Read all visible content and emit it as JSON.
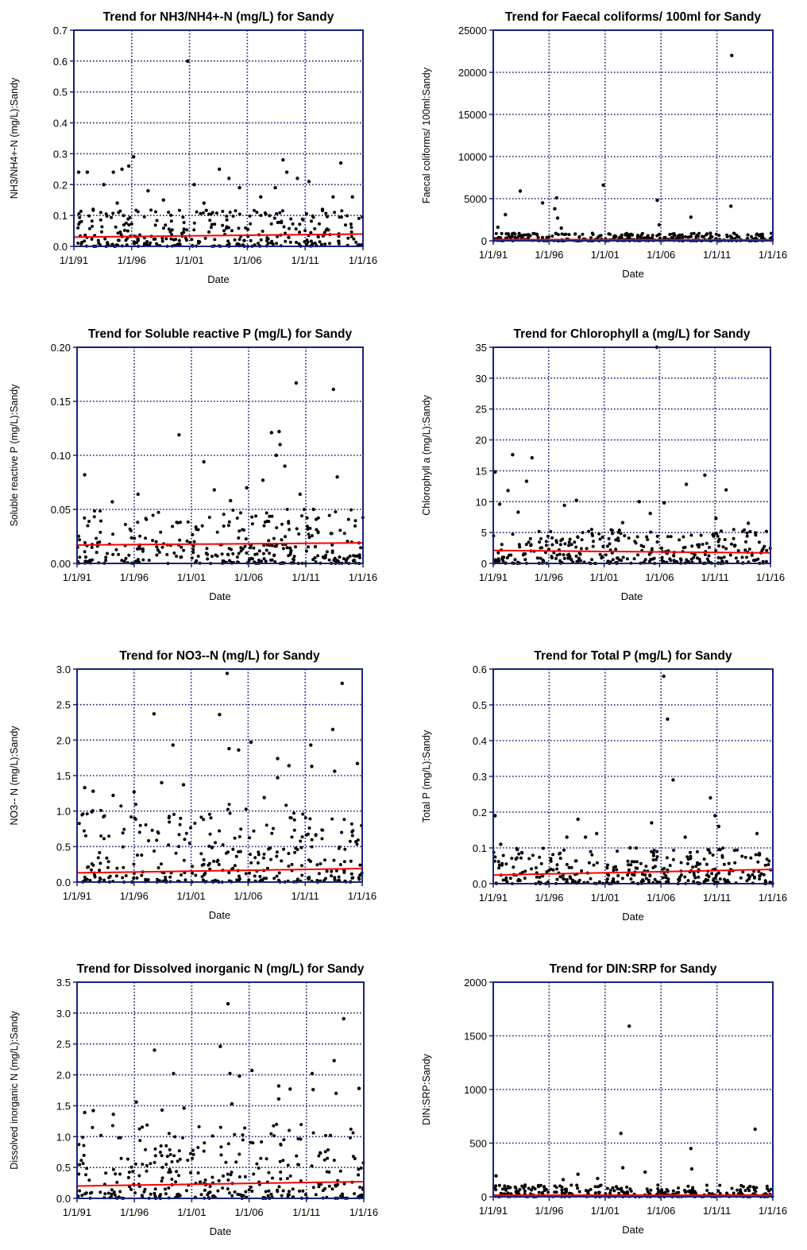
{
  "chart_data": [
    {
      "id": "nh3",
      "type": "scatter",
      "title": "Trend for NH3/NH4+-N (mg/L) for Sandy",
      "xlabel": "Date",
      "ylabel": "NH3/NH4+-N (mg/L):Sandy",
      "x_ticks": [
        "1/1/91",
        "1/1/96",
        "1/1/01",
        "1/1/06",
        "1/1/11",
        "1/1/16"
      ],
      "xlim": [
        "1991-01-01",
        "2016-01-01"
      ],
      "y_ticks": [
        "0.0",
        "0.1",
        "0.2",
        "0.3",
        "0.4",
        "0.5",
        "0.6",
        "0.7"
      ],
      "ylim": [
        0,
        0.7
      ],
      "grid": true,
      "series": [
        {
          "values": [
            [
              "1991-06-01",
              0.24
            ],
            [
              "1992-03-01",
              0.24
            ],
            [
              "1993-08-01",
              0.2
            ],
            [
              "1994-06-01",
              0.24
            ],
            [
              "1995-03-01",
              0.25
            ],
            [
              "1995-10-01",
              0.26
            ],
            [
              "1996-03-01",
              0.29
            ],
            [
              "1997-06-01",
              0.18
            ],
            [
              "2000-11-01",
              0.6
            ],
            [
              "2001-06-01",
              0.2
            ],
            [
              "2003-08-01",
              0.25
            ],
            [
              "2004-06-01",
              0.22
            ],
            [
              "2005-05-01",
              0.19
            ],
            [
              "2008-06-01",
              0.19
            ],
            [
              "2009-02-01",
              0.28
            ],
            [
              "2009-06-01",
              0.24
            ],
            [
              "2010-05-01",
              0.22
            ],
            [
              "2011-05-01",
              0.21
            ],
            [
              "2014-02-01",
              0.27
            ],
            [
              "2013-06-01",
              0.16
            ],
            [
              "1992-09-01",
              0.12
            ],
            [
              "1994-10-01",
              0.14
            ],
            [
              "1998-10-01",
              0.15
            ],
            [
              "2002-04-01",
              0.14
            ],
            [
              "2007-03-01",
              0.16
            ],
            [
              "2012-07-01",
              0.12
            ],
            [
              "2015-02-01",
              0.16
            ]
          ]
        },
        {
          "name": "",
          "type": "trend",
          "x": [
            "1991-01-01",
            "2016-01-01"
          ],
          "y": [
            0.03,
            0.04
          ],
          "color": "#ff0000"
        }
      ],
      "dense_points": {
        "y_range": [
          0.0,
          0.12
        ]
      }
    },
    {
      "id": "faecal",
      "type": "scatter",
      "title": "Trend for Faecal coliforms/ 100ml for Sandy",
      "xlabel": "Date",
      "ylabel": "Faecal coliforms/ 100ml:Sandy",
      "x_ticks": [
        "1/1/91",
        "1/1/96",
        "1/1/01",
        "1/1/06",
        "1/1/11",
        "1/1/16"
      ],
      "xlim": [
        "1991-01-01",
        "2016-01-01"
      ],
      "y_ticks": [
        "0",
        "5000",
        "10000",
        "15000",
        "20000",
        "25000"
      ],
      "ylim": [
        0,
        25000
      ],
      "grid": true,
      "series": [
        {
          "values": [
            [
              "1991-06-01",
              1600
            ],
            [
              "1992-02-01",
              3100
            ],
            [
              "1993-06-01",
              5900
            ],
            [
              "1995-06-01",
              4500
            ],
            [
              "1996-07-01",
              3800
            ],
            [
              "1996-09-01",
              5100
            ],
            [
              "1996-10-01",
              2700
            ],
            [
              "1997-02-01",
              1500
            ],
            [
              "2000-11-01",
              6600
            ],
            [
              "2005-09-01",
              4800
            ],
            [
              "2005-11-01",
              1900
            ],
            [
              "2008-09-01",
              2800
            ],
            [
              "2012-05-01",
              22000
            ],
            [
              "2012-04-01",
              4100
            ],
            [
              "2010-06-01",
              900
            ],
            [
              "1998-05-01",
              800
            ]
          ]
        },
        {
          "name": "",
          "type": "trend",
          "x": [
            "1991-01-01",
            "2016-01-01"
          ],
          "y": [
            150,
            100
          ],
          "color": "#ff0000"
        }
      ],
      "dense_points": {
        "y_range": [
          0,
          900
        ]
      }
    },
    {
      "id": "srp",
      "type": "scatter",
      "title": "Trend for Soluble reactive P (mg/L) for Sandy",
      "xlabel": "Date",
      "ylabel": "Soluble reactive P (mg/L):Sandy",
      "x_ticks": [
        "1/1/91",
        "1/1/96",
        "1/1/01",
        "1/1/06",
        "1/1/11",
        "1/1/16"
      ],
      "xlim": [
        "1991-01-01",
        "2016-01-01"
      ],
      "y_ticks": [
        "0.00",
        "0.05",
        "0.10",
        "0.15",
        "0.20"
      ],
      "ylim": [
        0,
        0.2
      ],
      "grid": true,
      "series": [
        {
          "values": [
            [
              "1991-09-01",
              0.082
            ],
            [
              "1996-05-01",
              0.064
            ],
            [
              "1999-12-01",
              0.119
            ],
            [
              "2002-02-01",
              0.094
            ],
            [
              "2003-01-01",
              0.068
            ],
            [
              "2005-11-01",
              0.07
            ],
            [
              "2007-04-01",
              0.077
            ],
            [
              "2008-01-01",
              0.121
            ],
            [
              "2008-06-01",
              0.1
            ],
            [
              "2008-09-01",
              0.122
            ],
            [
              "2008-10-01",
              0.11
            ],
            [
              "2009-03-01",
              0.09
            ],
            [
              "2010-03-01",
              0.167
            ],
            [
              "2010-07-01",
              0.064
            ],
            [
              "2013-06-01",
              0.161
            ],
            [
              "2013-10-01",
              0.08
            ],
            [
              "1994-02-01",
              0.057
            ],
            [
              "2004-06-01",
              0.058
            ],
            [
              "2011-09-01",
              0.05
            ]
          ]
        },
        {
          "name": "",
          "type": "trend",
          "x": [
            "1991-01-01",
            "2016-01-01"
          ],
          "y": [
            0.017,
            0.019
          ],
          "color": "#ff0000"
        }
      ],
      "dense_points": {
        "y_range": [
          0.0,
          0.05
        ]
      }
    },
    {
      "id": "chla",
      "type": "scatter",
      "title": "Trend for Chlorophyll a (mg/L) for Sandy",
      "xlabel": "Date",
      "ylabel": "Chlorophyll a (mg/L):Sandy",
      "x_ticks": [
        "1/1/91",
        "1/1/96",
        "1/1/01",
        "1/1/06",
        "1/1/11",
        "1/1/16"
      ],
      "xlim": [
        "1991-01-01",
        "2016-01-01"
      ],
      "y_ticks": [
        "0",
        "5",
        "10",
        "15",
        "20",
        "25",
        "30",
        "35"
      ],
      "ylim": [
        0,
        35
      ],
      "grid": true,
      "series": [
        {
          "values": [
            [
              "1991-03-01",
              14.8
            ],
            [
              "1991-08-01",
              9.6
            ],
            [
              "1992-05-01",
              11.8
            ],
            [
              "1992-10-01",
              17.6
            ],
            [
              "1994-01-01",
              13.3
            ],
            [
              "1994-07-01",
              17.1
            ],
            [
              "1997-06-01",
              9.4
            ],
            [
              "1998-07-01",
              10.2
            ],
            [
              "2005-10-01",
              35
            ],
            [
              "2004-03-01",
              10
            ],
            [
              "2005-03-01",
              8.1
            ],
            [
              "2006-06-01",
              9.8
            ],
            [
              "2008-06-01",
              12.8
            ],
            [
              "2010-02-01",
              14.3
            ],
            [
              "2012-01-01",
              11.9
            ],
            [
              "2011-02-01",
              7.3
            ],
            [
              "2014-01-01",
              6.5
            ],
            [
              "2002-09-01",
              6.6
            ],
            [
              "1993-04-01",
              8.3
            ]
          ]
        },
        {
          "name": "",
          "type": "trend",
          "x": [
            "1991-01-01",
            "2016-01-01"
          ],
          "y": [
            2.1,
            1.7
          ],
          "color": "#ff0000"
        }
      ],
      "dense_points": {
        "y_range": [
          0,
          5.5
        ]
      }
    },
    {
      "id": "no3",
      "type": "scatter",
      "title": "Trend for NO3--N (mg/L) for Sandy",
      "xlabel": "Date",
      "ylabel": "NO3-- N (mg/L):Sandy",
      "x_ticks": [
        "1/1/91",
        "1/1/96",
        "1/1/01",
        "1/1/06",
        "1/1/11",
        "1/1/16"
      ],
      "xlim": [
        "1991-01-01",
        "2016-01-01"
      ],
      "y_ticks": [
        "0.0",
        "0.5",
        "1.0",
        "1.5",
        "2.0",
        "2.5",
        "3.0"
      ],
      "ylim": [
        0,
        3
      ],
      "grid": true,
      "series": [
        {
          "values": [
            [
              "1991-09-01",
              1.33
            ],
            [
              "1992-06-01",
              1.28
            ],
            [
              "1994-03-01",
              1.22
            ],
            [
              "1996-01-01",
              1.27
            ],
            [
              "1997-10-01",
              2.37
            ],
            [
              "1998-06-01",
              1.4
            ],
            [
              "1999-06-01",
              1.93
            ],
            [
              "2000-05-01",
              1.37
            ],
            [
              "2003-07-01",
              2.36
            ],
            [
              "2004-03-01",
              2.94
            ],
            [
              "2004-05-01",
              1.88
            ],
            [
              "2005-03-01",
              1.86
            ],
            [
              "2006-04-01",
              1.97
            ],
            [
              "2008-08-01",
              1.74
            ],
            [
              "2008-08-01",
              1.47
            ],
            [
              "2009-08-01",
              1.64
            ],
            [
              "2011-07-01",
              1.93
            ],
            [
              "2011-08-01",
              1.63
            ],
            [
              "2013-06-01",
              2.15
            ],
            [
              "2014-04-01",
              2.8
            ],
            [
              "2013-08-01",
              1.56
            ],
            [
              "2015-08-01",
              1.67
            ],
            [
              "2007-06-01",
              1.19
            ]
          ]
        },
        {
          "name": "",
          "type": "trend",
          "x": [
            "1991-01-01",
            "2016-01-01"
          ],
          "y": [
            0.13,
            0.19
          ],
          "color": "#ff0000"
        }
      ],
      "dense_points": {
        "y_range": [
          0.0,
          1.1
        ]
      }
    },
    {
      "id": "tp",
      "type": "scatter",
      "title": "Trend for Total P (mg/L) for Sandy",
      "xlabel": "Date",
      "ylabel": "Total P (mg/L):Sandy",
      "x_ticks": [
        "1/1/91",
        "1/1/96",
        "1/1/01",
        "1/1/06",
        "1/1/11",
        "1/1/16"
      ],
      "xlim": [
        "1991-01-01",
        "2016-01-01"
      ],
      "y_ticks": [
        "0.0",
        "0.1",
        "0.2",
        "0.3",
        "0.4",
        "0.5",
        "0.6"
      ],
      "ylim": [
        0,
        0.6
      ],
      "grid": true,
      "series": [
        {
          "values": [
            [
              "1991-03-01",
              0.19
            ],
            [
              "1991-09-01",
              0.11
            ],
            [
              "1997-08-01",
              0.13
            ],
            [
              "1998-08-01",
              0.18
            ],
            [
              "1999-04-01",
              0.13
            ],
            [
              "2000-04-01",
              0.14
            ],
            [
              "2005-03-01",
              0.17
            ],
            [
              "2006-04-01",
              0.58
            ],
            [
              "2006-08-01",
              0.46
            ],
            [
              "2007-02-01",
              0.29
            ],
            [
              "2010-06-01",
              0.24
            ],
            [
              "2010-11-01",
              0.19
            ],
            [
              "2011-03-01",
              0.16
            ],
            [
              "2014-08-01",
              0.14
            ],
            [
              "2008-03-01",
              0.13
            ],
            [
              "2003-04-01",
              0.1
            ]
          ]
        },
        {
          "name": "",
          "type": "trend",
          "x": [
            "1991-01-01",
            "2016-01-01"
          ],
          "y": [
            0.024,
            0.04
          ],
          "color": "#ff0000"
        }
      ],
      "dense_points": {
        "y_range": [
          0.0,
          0.1
        ]
      }
    },
    {
      "id": "din",
      "type": "scatter",
      "title": "Trend for Dissolved inorganic N (mg/L) for Sandy",
      "xlabel": "Date",
      "ylabel": "Dissolved inorganic N (mg/L):Sandy",
      "x_ticks": [
        "1/1/91",
        "1/1/96",
        "1/1/01",
        "1/1/06",
        "1/1/11",
        "1/1/16"
      ],
      "xlim": [
        "1991-01-01",
        "2016-01-01"
      ],
      "y_ticks": [
        "0.0",
        "0.5",
        "1.0",
        "1.5",
        "2.0",
        "2.5",
        "3.0",
        "3.5"
      ],
      "ylim": [
        0,
        3.5
      ],
      "grid": true,
      "series": [
        {
          "values": [
            [
              "1991-09-01",
              1.39
            ],
            [
              "1992-06-01",
              1.42
            ],
            [
              "1994-03-01",
              1.36
            ],
            [
              "1996-03-01",
              1.56
            ],
            [
              "1997-10-01",
              2.4
            ],
            [
              "1998-06-01",
              1.43
            ],
            [
              "1999-06-01",
              2.02
            ],
            [
              "2000-05-01",
              1.46
            ],
            [
              "2003-07-01",
              2.46
            ],
            [
              "2004-03-01",
              3.15
            ],
            [
              "2004-05-01",
              2.02
            ],
            [
              "2005-03-01",
              1.98
            ],
            [
              "2006-04-01",
              2.07
            ],
            [
              "2008-08-01",
              1.82
            ],
            [
              "2008-08-01",
              1.61
            ],
            [
              "2009-08-01",
              1.77
            ],
            [
              "2011-07-01",
              2.02
            ],
            [
              "2011-08-01",
              1.76
            ],
            [
              "2013-06-01",
              2.23
            ],
            [
              "2014-04-01",
              2.91
            ],
            [
              "2013-08-01",
              1.7
            ],
            [
              "2015-08-01",
              1.78
            ],
            [
              "2004-07-01",
              1.53
            ]
          ]
        },
        {
          "name": "",
          "type": "trend",
          "x": [
            "1991-01-01",
            "2016-01-01"
          ],
          "y": [
            0.2,
            0.27
          ],
          "color": "#ff0000"
        }
      ],
      "dense_points": {
        "y_range": [
          0.0,
          1.2
        ]
      }
    },
    {
      "id": "dinsrp",
      "type": "scatter",
      "title": "Trend for DIN:SRP for Sandy",
      "xlabel": "Date",
      "ylabel": "DIN:SRP:Sandy",
      "x_ticks": [
        "1/1/91",
        "1/1/96",
        "1/1/01",
        "1/1/06",
        "1/1/11",
        "1/1/16"
      ],
      "xlim": [
        "1991-01-01",
        "2016-01-01"
      ],
      "y_ticks": [
        "0",
        "500",
        "1000",
        "1500",
        "2000"
      ],
      "ylim": [
        0,
        2000
      ],
      "grid": true,
      "series": [
        {
          "values": [
            [
              "1991-04-01",
              195
            ],
            [
              "2003-03-01",
              1590
            ],
            [
              "2002-06-01",
              590
            ],
            [
              "2002-08-01",
              270
            ],
            [
              "2004-08-01",
              230
            ],
            [
              "2008-09-01",
              450
            ],
            [
              "2008-10-01",
              260
            ],
            [
              "2014-06-01",
              630
            ],
            [
              "1998-08-01",
              210
            ],
            [
              "2000-05-01",
              170
            ],
            [
              "1997-04-01",
              160
            ]
          ]
        },
        {
          "name": "",
          "type": "trend",
          "x": [
            "1991-01-01",
            "2016-01-01"
          ],
          "y": [
            15,
            15
          ],
          "color": "#ff0000"
        }
      ],
      "dense_points": {
        "y_range": [
          0,
          110
        ]
      }
    }
  ]
}
